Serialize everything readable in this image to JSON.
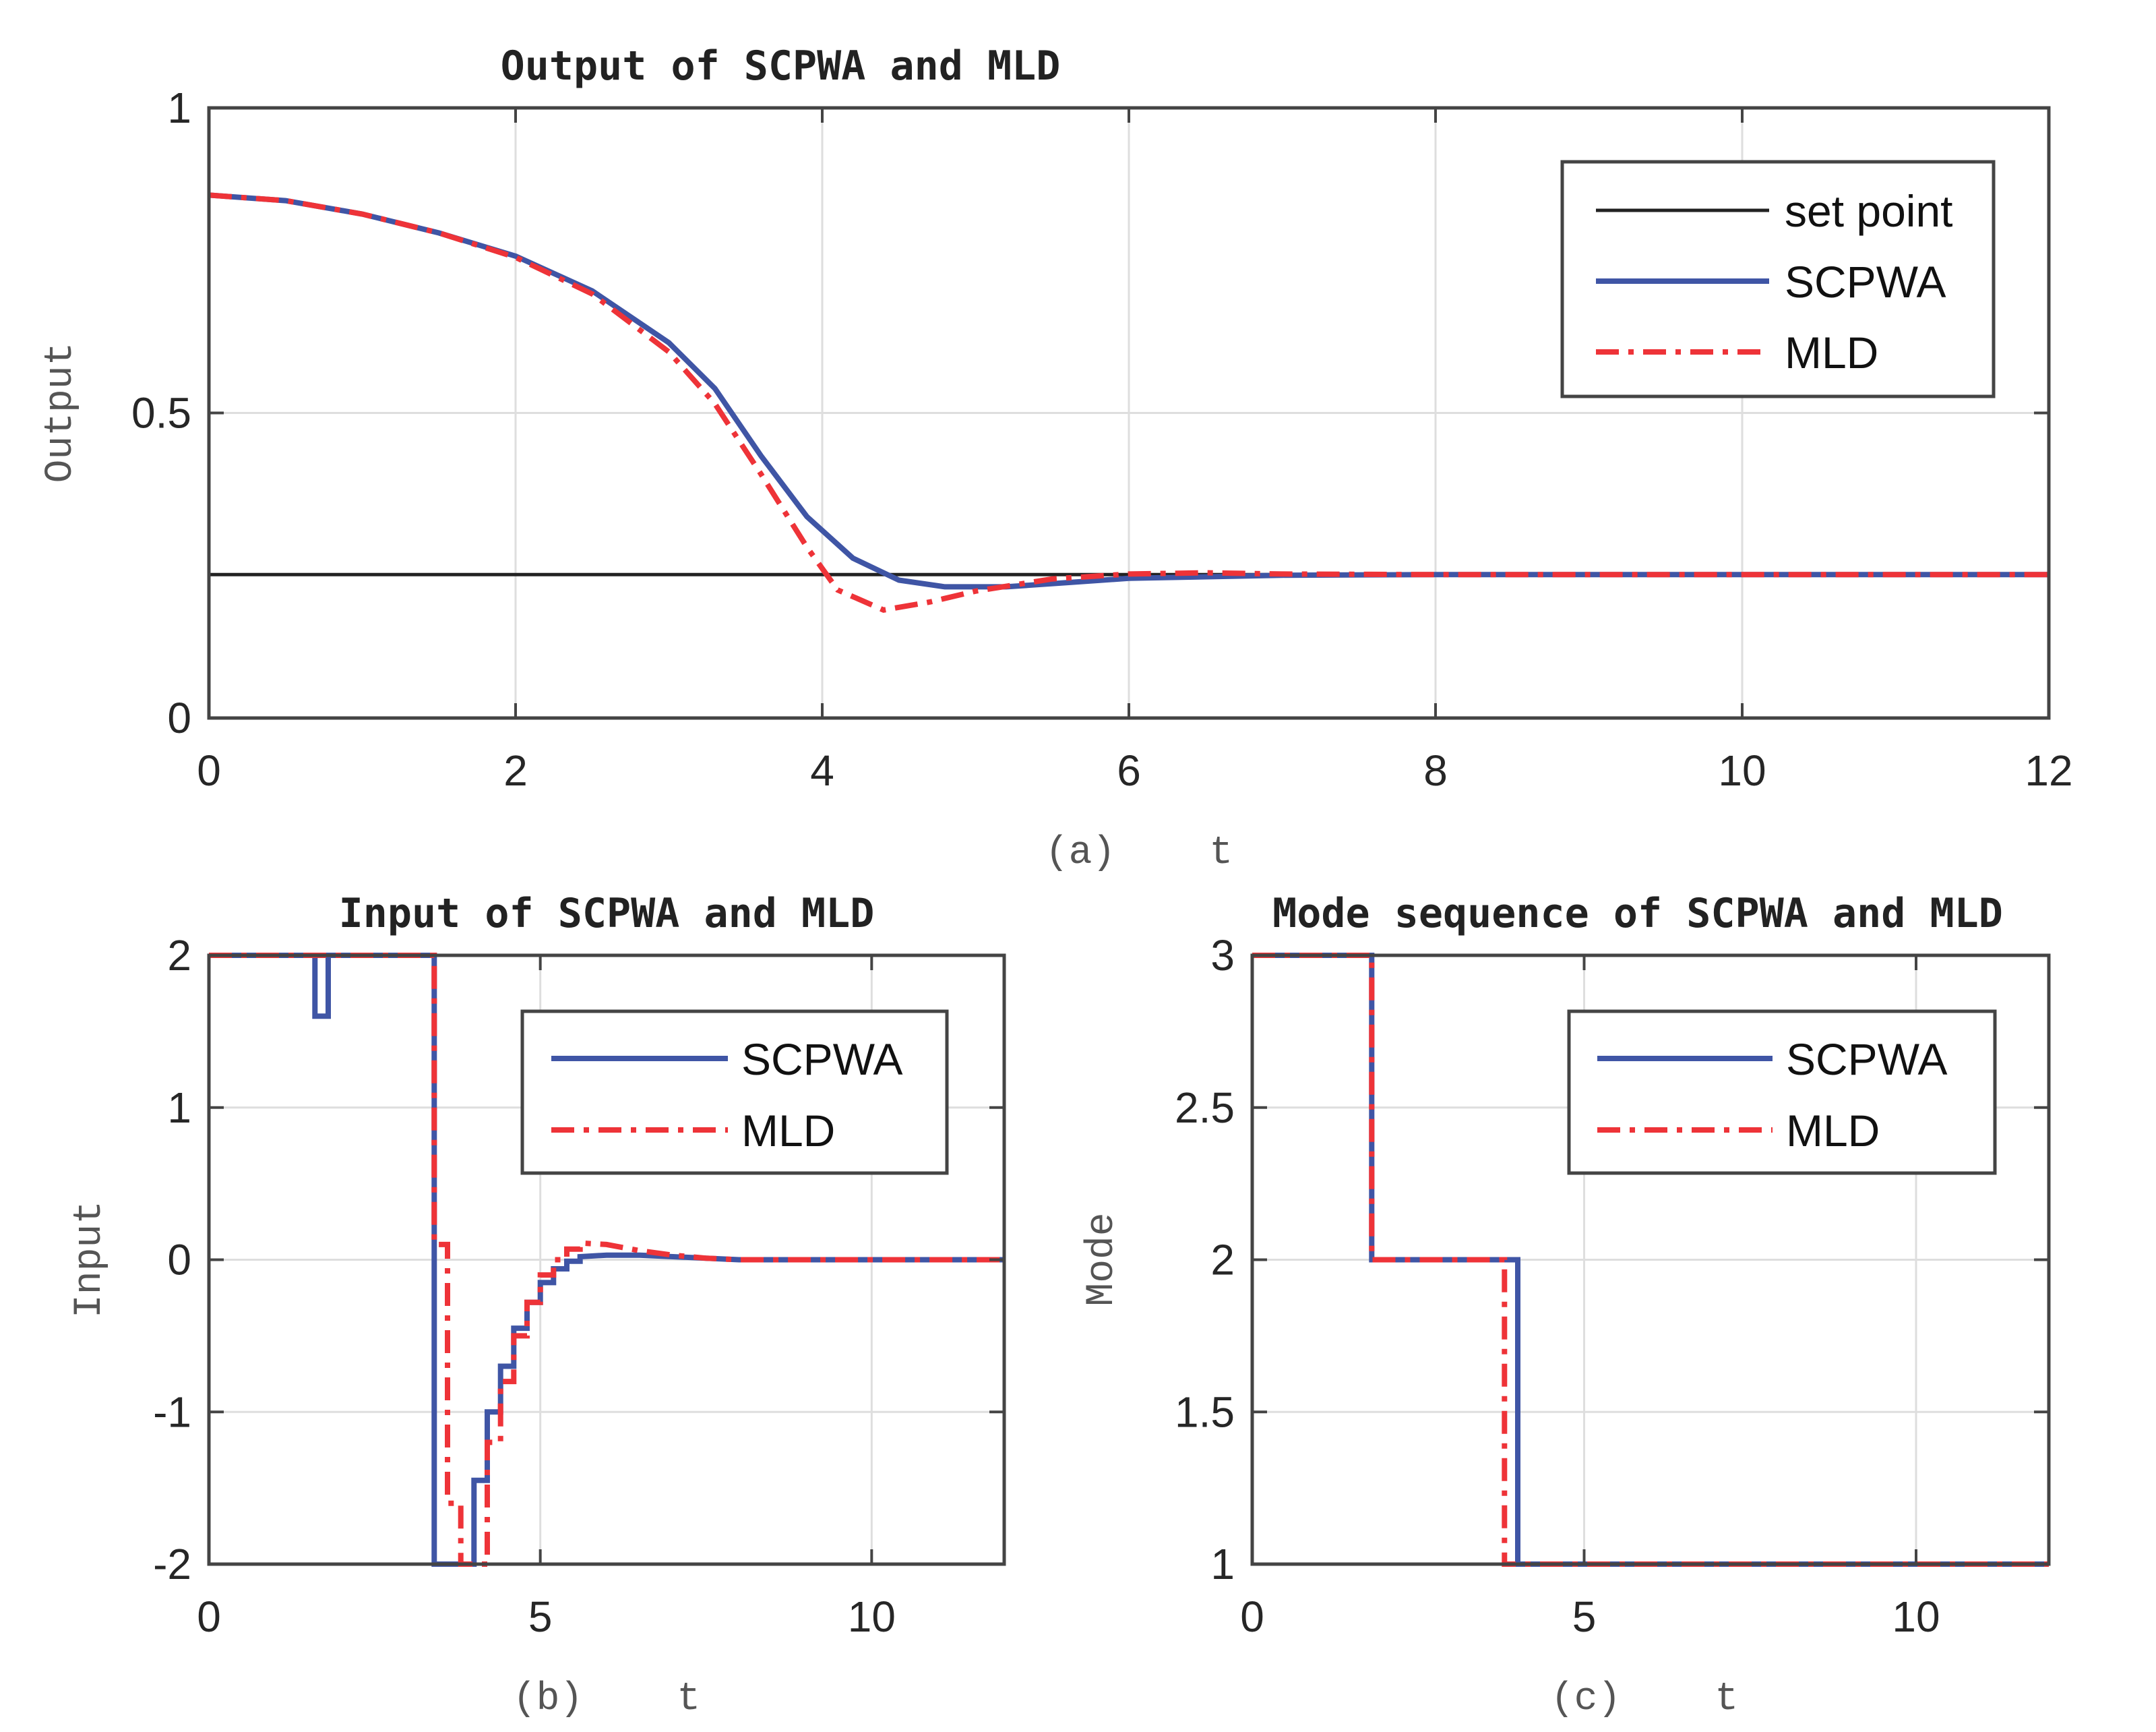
{
  "colors": {
    "set_point": "#222222",
    "scpwa": "#3f55a5",
    "mld": "#ee3338",
    "grid": "#dedede",
    "axis": "#444444"
  },
  "chart_data": [
    {
      "id": "a",
      "type": "line",
      "title": "Output of SCPWA and MLD",
      "xlabel": "(a)    t",
      "ylabel": "Output",
      "xlim": [
        0,
        12
      ],
      "ylim": [
        0,
        1
      ],
      "xticks": [
        0,
        2,
        4,
        6,
        8,
        10,
        12
      ],
      "xtick_labels": [
        "0",
        "2",
        "4",
        "6",
        "8",
        "10",
        "12"
      ],
      "yticks": [
        0,
        0.5,
        1
      ],
      "ytick_labels": [
        "0",
        "0.5",
        "1"
      ],
      "grid": true,
      "legend_position": "top-right",
      "series": [
        {
          "name": "set point",
          "style": "solid-black",
          "x": [
            0,
            12
          ],
          "y": [
            0.235,
            0.235
          ]
        },
        {
          "name": "SCPWA",
          "style": "solid-blue",
          "x": [
            0,
            0.5,
            1,
            1.5,
            2,
            2.5,
            3,
            3.3,
            3.6,
            3.9,
            4.2,
            4.5,
            4.8,
            5.2,
            5.6,
            6,
            7,
            8,
            9,
            10,
            12
          ],
          "y": [
            0.857,
            0.848,
            0.826,
            0.795,
            0.757,
            0.7,
            0.615,
            0.54,
            0.43,
            0.33,
            0.262,
            0.226,
            0.215,
            0.215,
            0.222,
            0.229,
            0.234,
            0.235,
            0.235,
            0.235,
            0.235
          ]
        },
        {
          "name": "MLD",
          "style": "dashdot-red",
          "x": [
            0,
            0.5,
            1,
            1.5,
            2,
            2.5,
            3,
            3.3,
            3.6,
            3.9,
            4.1,
            4.4,
            4.7,
            5,
            5.5,
            6,
            6.5,
            7,
            8,
            10,
            12
          ],
          "y": [
            0.857,
            0.848,
            0.826,
            0.795,
            0.755,
            0.695,
            0.6,
            0.515,
            0.4,
            0.28,
            0.21,
            0.177,
            0.19,
            0.208,
            0.228,
            0.236,
            0.238,
            0.236,
            0.235,
            0.235,
            0.235
          ]
        }
      ]
    },
    {
      "id": "b",
      "type": "line",
      "title": "Input of SCPWA and MLD",
      "xlabel": "(b)    t",
      "ylabel": "Input",
      "xlim": [
        0,
        12
      ],
      "ylim": [
        -2,
        2
      ],
      "xticks": [
        0,
        5,
        10
      ],
      "xtick_labels": [
        "0",
        "5",
        "10"
      ],
      "yticks": [
        -2,
        -1,
        0,
        1,
        2
      ],
      "ytick_labels": [
        "-2",
        "-1",
        "0",
        "1",
        "2"
      ],
      "grid": true,
      "legend_position": "top-right",
      "series": [
        {
          "name": "SCPWA",
          "style": "solid-blue",
          "x": [
            0,
            1.6,
            1.6,
            1.8,
            1.8,
            3.4,
            3.4,
            4.0,
            4.0,
            4.2,
            4.2,
            4.4,
            4.4,
            4.6,
            4.6,
            4.8,
            4.8,
            5.0,
            5.0,
            5.2,
            5.2,
            5.4,
            5.4,
            5.6,
            5.6,
            6.0,
            6.5,
            7.0,
            7.5,
            8.0,
            12
          ],
          "y": [
            2,
            2,
            1.6,
            1.6,
            2,
            2,
            -2,
            -2,
            -1.45,
            -1.45,
            -1.0,
            -1.0,
            -0.7,
            -0.7,
            -0.45,
            -0.45,
            -0.28,
            -0.28,
            -0.15,
            -0.15,
            -0.06,
            -0.06,
            -0.01,
            -0.01,
            0.02,
            0.03,
            0.03,
            0.02,
            0.01,
            0,
            0
          ]
        },
        {
          "name": "MLD",
          "style": "dashdot-red",
          "x": [
            0,
            3.4,
            3.4,
            3.6,
            3.6,
            3.8,
            3.8,
            4.2,
            4.2,
            4.4,
            4.4,
            4.6,
            4.6,
            4.8,
            4.8,
            5.0,
            5.0,
            5.2,
            5.2,
            5.4,
            5.4,
            5.6,
            5.6,
            6.0,
            6.5,
            7.0,
            7.5,
            8.0,
            12
          ],
          "y": [
            2,
            2,
            0.1,
            0.1,
            -1.6,
            -1.6,
            -2,
            -2,
            -1.2,
            -1.2,
            -0.8,
            -0.8,
            -0.5,
            -0.5,
            -0.28,
            -0.28,
            -0.1,
            -0.1,
            0.0,
            0.0,
            0.07,
            0.07,
            0.11,
            0.1,
            0.06,
            0.03,
            0.01,
            0,
            0
          ]
        }
      ]
    },
    {
      "id": "c",
      "type": "line",
      "title": "Mode sequence of SCPWA and MLD",
      "xlabel": "(c)    t",
      "ylabel": "Mode",
      "xlim": [
        0,
        12
      ],
      "ylim": [
        1,
        3
      ],
      "xticks": [
        0,
        5,
        10
      ],
      "xtick_labels": [
        "0",
        "5",
        "10"
      ],
      "yticks": [
        1,
        1.5,
        2,
        2.5,
        3
      ],
      "ytick_labels": [
        "1",
        "1.5",
        "2",
        "2.5",
        "3"
      ],
      "grid": true,
      "legend_position": "top-right",
      "series": [
        {
          "name": "SCPWA",
          "style": "solid-blue",
          "x": [
            0,
            1.8,
            1.8,
            4.0,
            4.0,
            12
          ],
          "y": [
            3,
            3,
            2,
            2,
            1,
            1
          ]
        },
        {
          "name": "MLD",
          "style": "dashdot-red",
          "x": [
            0,
            1.8,
            1.8,
            3.8,
            3.8,
            12
          ],
          "y": [
            3,
            3,
            2,
            2,
            1,
            1
          ]
        }
      ]
    }
  ]
}
